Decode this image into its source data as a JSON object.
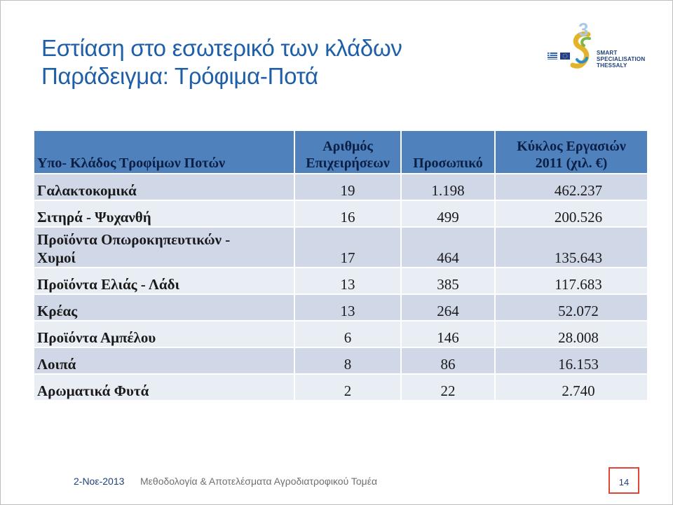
{
  "title": {
    "line1": "Εστίαση στο εσωτερικό των κλάδων",
    "line2": "Παράδειγμα: Τρόφιμα-Ποτά"
  },
  "logo": {
    "number": "3",
    "text_line1": "SMART",
    "text_line2": "SPECIALISATION",
    "text_line3": "THESSALY",
    "colors": {
      "s_gold": "#e3b32a",
      "s_green": "#7ab648",
      "s_blue": "#2a8cc8",
      "number": "#a9c9e8"
    }
  },
  "table": {
    "headers": [
      {
        "line1": "Υπο- Κλάδος Τροφίμων Ποτών",
        "line2": ""
      },
      {
        "line1": "Αριθμός",
        "line2": "Επιχειρήσεων"
      },
      {
        "line1": "Προσωπικό",
        "line2": ""
      },
      {
        "line1": "Κύκλος Εργασιών",
        "line2": "2011 (χιλ. €)"
      }
    ],
    "rows": [
      {
        "name_line1": "Γαλακτοκομικά",
        "name_line2": "",
        "firms": "19",
        "staff": "1.198",
        "turnover": "462.237"
      },
      {
        "name_line1": "Σιτηρά - Ψυχανθή",
        "name_line2": "",
        "firms": "16",
        "staff": "499",
        "turnover": "200.526"
      },
      {
        "name_line1": "Προϊόντα Οπωροκηπευτικών -",
        "name_line2": "Χυμοί",
        "firms": "17",
        "staff": "464",
        "turnover": "135.643"
      },
      {
        "name_line1": "Προϊόντα Ελιάς - Λάδι",
        "name_line2": "",
        "firms": "13",
        "staff": "385",
        "turnover": "117.683"
      },
      {
        "name_line1": "Κρέας",
        "name_line2": "",
        "firms": "13",
        "staff": "264",
        "turnover": "52.072"
      },
      {
        "name_line1": "Προϊόντα Αμπέλου",
        "name_line2": "",
        "firms": "6",
        "staff": "146",
        "turnover": "28.008"
      },
      {
        "name_line1": "Λοιπά",
        "name_line2": "",
        "firms": "8",
        "staff": "86",
        "turnover": "16.153"
      },
      {
        "name_line1": "Αρωματικά Φυτά",
        "name_line2": "",
        "firms": "2",
        "staff": "22",
        "turnover": "2.740"
      }
    ],
    "colors": {
      "header": "#4f81bd",
      "row_odd": "#d0d8e8",
      "row_even": "#e9edf4"
    }
  },
  "footer": {
    "date": "2-Νοε-2013",
    "text": "Μεθοδολογία & Αποτελέσματα Αγροδιατροφικού Τομέα",
    "page": "14"
  }
}
